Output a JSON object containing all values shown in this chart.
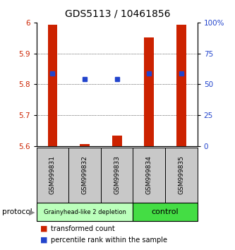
{
  "title": "GDS5113 / 10461856",
  "samples": [
    "GSM999831",
    "GSM999832",
    "GSM999833",
    "GSM999834",
    "GSM999835"
  ],
  "red_bar_bottom": [
    5.597,
    5.597,
    5.597,
    5.597,
    5.597
  ],
  "red_bar_top": [
    5.993,
    5.607,
    5.635,
    5.951,
    5.993
  ],
  "blue_square_y": [
    5.836,
    5.817,
    5.818,
    5.836,
    5.836
  ],
  "ylim": [
    5.6,
    6.0
  ],
  "yticks_left": [
    5.6,
    5.7,
    5.8,
    5.9,
    6.0
  ],
  "ytick_labels_left": [
    "5.6",
    "5.7",
    "5.8",
    "5.9",
    "6"
  ],
  "yticks_right": [
    0,
    25,
    50,
    75,
    100
  ],
  "ytick_labels_right": [
    "0",
    "25",
    "50",
    "75",
    "100%"
  ],
  "red_color": "#cc2200",
  "blue_color": "#2244cc",
  "group1_label": "Grainyhead-like 2 depletion",
  "group2_label": "control",
  "group1_color": "#bbffbb",
  "group2_color": "#44dd44",
  "protocol_label": "protocol",
  "legend_red_label": "transformed count",
  "legend_blue_label": "percentile rank within the sample",
  "title_fontsize": 10,
  "tick_fontsize": 7.5,
  "sample_label_fontsize": 6.5,
  "bar_width": 0.3,
  "marker_size": 4.0
}
